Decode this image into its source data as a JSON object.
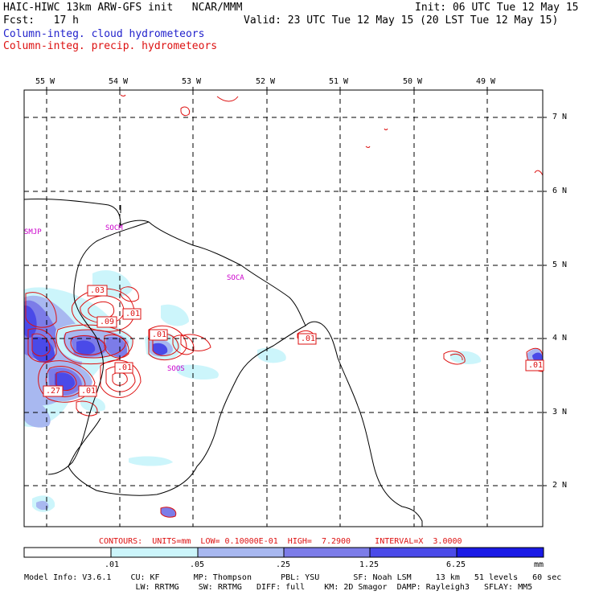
{
  "header": {
    "title": "HAIC-HIWC 13km ARW-GFS init   NCAR/MMM",
    "init": "Init: 06 UTC Tue 12 May 15",
    "fcst": "Fcst:   17 h",
    "valid": "Valid: 23 UTC Tue 12 May 15 (20 LST Tue 12 May 15)",
    "legend_cloud": "Column-integ. cloud hydrometeors",
    "legend_precip": "Column-integ. precip. hydrometeors"
  },
  "map": {
    "lon_labels": [
      "55 W",
      "54 W",
      "53 W",
      "52 W",
      "51 W",
      "50 W",
      "49 W"
    ],
    "lat_labels": [
      "7 N",
      "6 N",
      "5 N",
      "4 N",
      "3 N",
      "2 N"
    ],
    "stations": [
      "SMJP",
      "SOCM",
      "SOCA",
      "SOOS"
    ],
    "contour_labels": [
      ".03",
      ".01",
      ".09",
      ".01",
      ".01",
      ".27",
      ".01",
      ".01",
      ".01"
    ]
  },
  "contours_line": "CONTOURS:  UNITS=mm  LOW= 0.10000E-01  HIGH=  7.2900     INTERVAL=X  3.0000",
  "colorbar": {
    "ticks": [
      ".01",
      ".05",
      ".25",
      "1.25",
      "6.25"
    ],
    "unit": "mm",
    "colors": [
      "#ffffff",
      "#ccf5fb",
      "#a8b8f0",
      "#7c7ce8",
      "#4a4ae8",
      "#1a1ae6"
    ]
  },
  "model_info": {
    "line1": "Model Info: V3.6.1    CU: KF       MP: Thompson      PBL: YSU       SF: Noah LSM     13 km   51 levels   60 sec",
    "line2": "                       LW: RRTMG    SW: RRTMG   DIFF: full    KM: 2D Smagor  DAMP: Rayleigh3   SFLAY: MM5"
  }
}
